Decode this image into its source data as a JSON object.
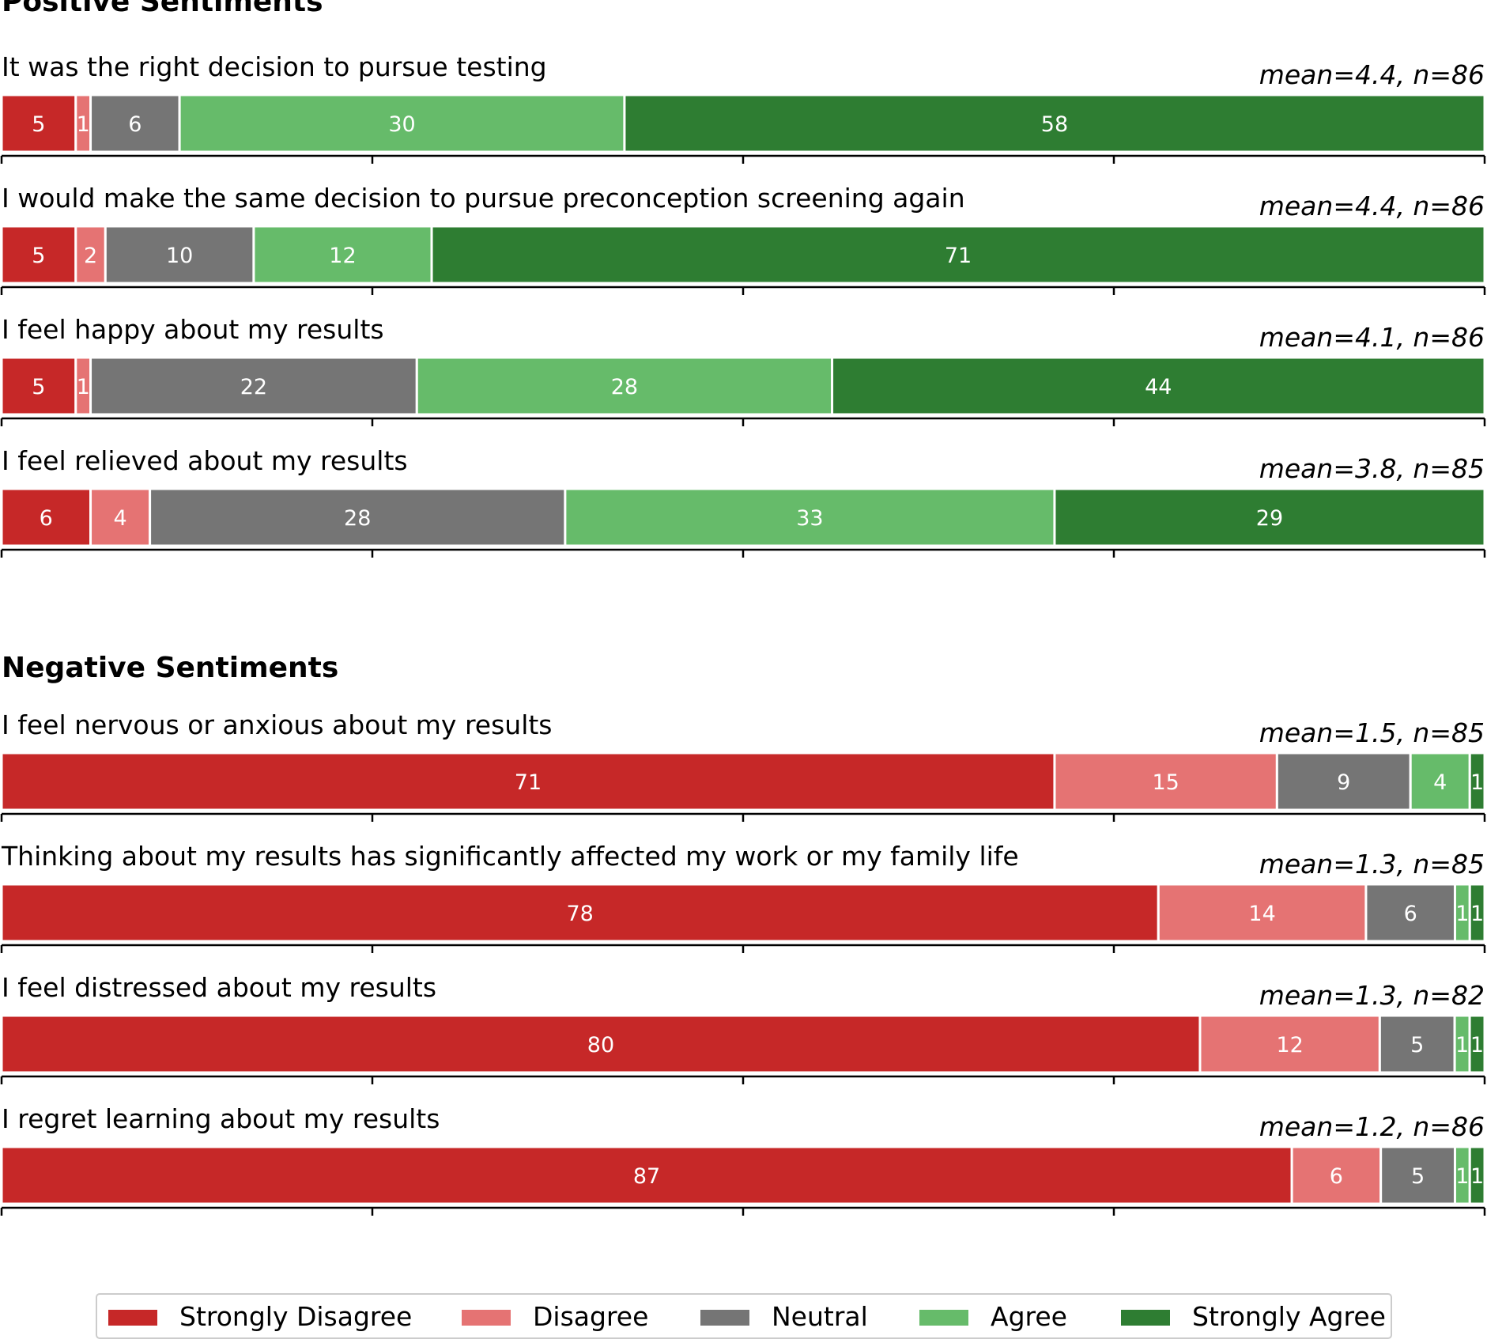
{
  "chart_data": {
    "type": "bar",
    "orientation": "horizontal",
    "stacked": "percent",
    "categories": [
      "Strongly Disagree",
      "Disagree",
      "Neutral",
      "Agree",
      "Strongly Agree"
    ],
    "colors": [
      "#c62828",
      "#e57373",
      "#757575",
      "#66bb6a",
      "#2e7d32"
    ],
    "xlim": [
      0,
      100
    ],
    "legend_position": "bottom",
    "sections": [
      {
        "title": "Positive Sentiments",
        "items": [
          {
            "question": "It was the right decision to pursue testing",
            "mean_label": "mean=4.4, n=86",
            "values": [
              5,
              1,
              6,
              30,
              58
            ]
          },
          {
            "question": "I would make the same decision to pursue preconception screening again",
            "mean_label": "mean=4.4, n=86",
            "values": [
              5,
              2,
              10,
              12,
              71
            ]
          },
          {
            "question": "I feel happy about my results",
            "mean_label": "mean=4.1, n=86",
            "values": [
              5,
              1,
              22,
              28,
              44
            ]
          },
          {
            "question": "I feel relieved about my results",
            "mean_label": "mean=3.8, n=85",
            "values": [
              6,
              4,
              28,
              33,
              29
            ]
          }
        ]
      },
      {
        "title": "Negative Sentiments",
        "items": [
          {
            "question": "I feel nervous or anxious about my results",
            "mean_label": "mean=1.5, n=85",
            "values": [
              71,
              15,
              9,
              4,
              1
            ]
          },
          {
            "question": "Thinking about my results has significantly affected my work or my family life",
            "mean_label": "mean=1.3, n=85",
            "values": [
              78,
              14,
              6,
              1,
              1
            ]
          },
          {
            "question": "I feel distressed about my results",
            "mean_label": "mean=1.3, n=82",
            "values": [
              80,
              12,
              5,
              1,
              1
            ]
          },
          {
            "question": "I regret learning about my results",
            "mean_label": "mean=1.2, n=86",
            "values": [
              87,
              6,
              5,
              1,
              1
            ]
          }
        ]
      }
    ]
  }
}
